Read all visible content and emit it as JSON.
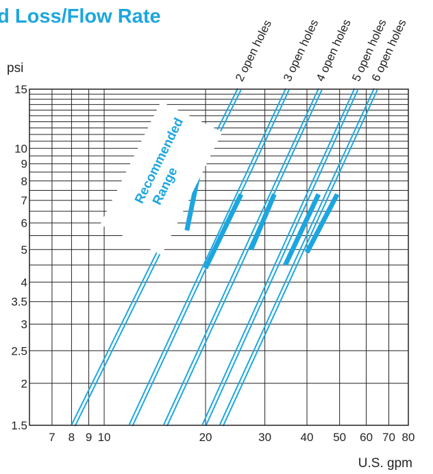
{
  "chart_data": {
    "type": "line",
    "title": "ad Loss/Flow Rate",
    "xlabel": "U.S. gpm",
    "ylabel": "psi",
    "x_scale": "log",
    "y_scale": "log",
    "xlim": [
      6,
      80
    ],
    "ylim": [
      1.5,
      15
    ],
    "grid": true,
    "x_ticks": [
      7,
      8,
      9,
      10,
      20,
      30,
      40,
      50,
      60,
      70,
      80
    ],
    "x_tick_labels": [
      "7",
      "8",
      "9",
      "10",
      "20",
      "30",
      "40",
      "50",
      "60",
      "70",
      "80"
    ],
    "y_ticks": [
      1.5,
      2,
      2.5,
      3,
      3.5,
      4,
      5,
      6,
      7,
      8,
      9,
      10,
      15
    ],
    "y_tick_labels": [
      "1.5",
      "2",
      "2.5",
      "3",
      "3.5",
      "4",
      "5",
      "6",
      "7",
      "8",
      "9",
      "10",
      "15"
    ],
    "series": [
      {
        "name": "2 open holes",
        "x": [
          8.1,
          25.2
        ],
        "y": [
          1.5,
          15
        ],
        "recommended": [
          [
            17.6,
            5.7
          ],
          [
            19.0,
            8.3
          ]
        ]
      },
      {
        "name": "3 open holes",
        "x": [
          12.0,
          35.0
        ],
        "y": [
          1.5,
          15
        ],
        "recommended": [
          [
            20.0,
            4.4
          ],
          [
            25.5,
            7.3
          ]
        ]
      },
      {
        "name": "4 open holes",
        "x": [
          15.2,
          43.8
        ],
        "y": [
          1.5,
          15
        ],
        "recommended": [
          [
            27.3,
            5.0
          ],
          [
            32.0,
            7.3
          ]
        ]
      },
      {
        "name": "5 open holes",
        "x": [
          19.8,
          56.0
        ],
        "y": [
          1.5,
          15
        ],
        "recommended": [
          [
            34.5,
            4.5
          ],
          [
            43.3,
            7.3
          ]
        ]
      },
      {
        "name": "6 open holes",
        "x": [
          22.3,
          64.0
        ],
        "y": [
          1.5,
          15
        ],
        "recommended": [
          [
            40.0,
            4.9
          ],
          [
            49.2,
            7.3
          ]
        ]
      }
    ],
    "annotations": [
      "Recommended",
      "Range"
    ],
    "colors": {
      "line": "#1ca6df",
      "grid": "#231f20",
      "title": "#1ca6df"
    }
  }
}
